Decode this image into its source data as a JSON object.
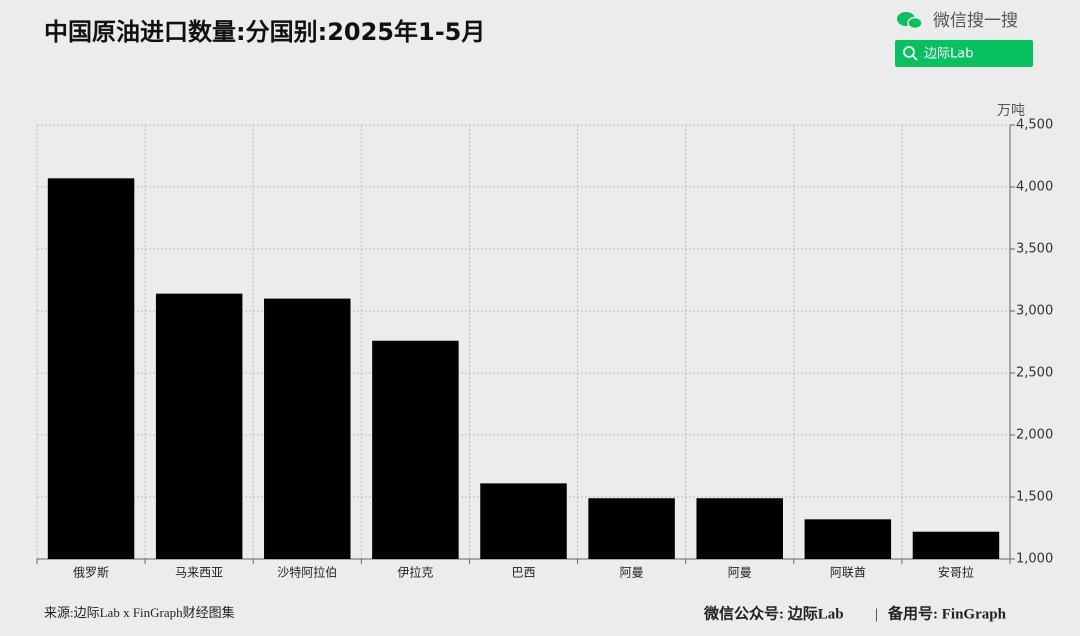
{
  "header": {
    "search_label": "微信搜一搜",
    "search_button": "边际Lab"
  },
  "chart_data": {
    "type": "bar",
    "title": "中国原油进口数量:分国别:2025年1-5月",
    "y_unit": "万吨",
    "categories": [
      "俄罗斯",
      "马来西亚",
      "沙特阿拉伯",
      "伊拉克",
      "巴西",
      "阿曼",
      "阿曼",
      "阿联酋",
      "安哥拉"
    ],
    "values": [
      4070,
      3140,
      3100,
      2760,
      1610,
      1490,
      1490,
      1320,
      1220
    ],
    "color": "#000000",
    "ylim": [
      1000,
      4500
    ],
    "yticks": [
      {
        "value": 1000,
        "label": "1,000"
      },
      {
        "value": 1500,
        "label": "1,500"
      },
      {
        "value": 2000,
        "label": "2,000"
      },
      {
        "value": 2500,
        "label": "2,500"
      },
      {
        "value": 3000,
        "label": "3,000"
      },
      {
        "value": 3500,
        "label": "3,500"
      },
      {
        "value": 4000,
        "label": "4,000"
      },
      {
        "value": 4500,
        "label": "4,500"
      }
    ],
    "grid": true
  },
  "footer": {
    "source": "来源:边际Lab x FinGraph财经图集",
    "account": "微信公众号: 边际Lab",
    "separator": "|",
    "backup": "备用号: FinGraph"
  }
}
